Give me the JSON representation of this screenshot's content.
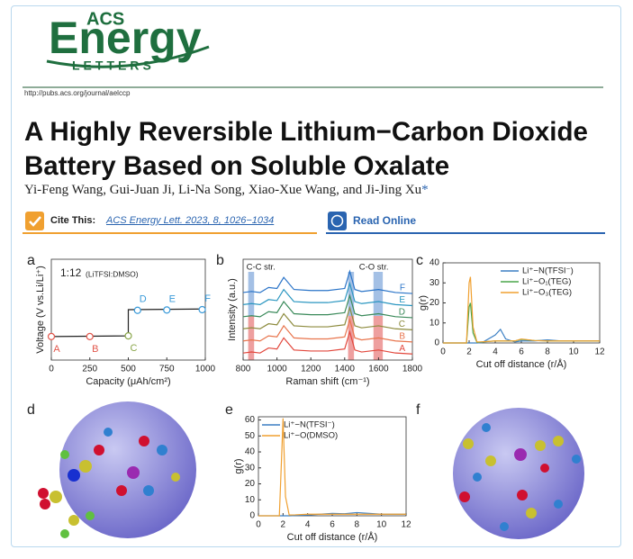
{
  "header": {
    "logo_top": "ACS",
    "logo_main": "Energy",
    "logo_bottom": "LETTERS",
    "url": "http://pubs.acs.org/journal/aelccp"
  },
  "title": "A Highly Reversible Lithium−Carbon Dioxide Battery Based on Soluble Oxalate",
  "authors": "Yi-Feng Wang, Gui-Juan Ji, Li-Na Song, Xiao-Xue Wang, and Ji-Jing Xu",
  "corresponding_mark": "*",
  "cite": {
    "label": "Cite This:",
    "citation": "ACS Energy Lett. 2023, 8, 1026−1034"
  },
  "read_online": "Read Online",
  "figure": {
    "panels": {
      "d": "d",
      "f": "f"
    }
  },
  "chart_data": [
    {
      "type": "line",
      "panel": "a",
      "annotation": "1:12",
      "annotation_note": "(LiTFSI:DMSO)",
      "xlabel": "Capacity (μAh/cm²)",
      "ylabel": "Voltage (V vs.Li/Li⁺)",
      "xlim": [
        0,
        1000
      ],
      "xticks": [
        0,
        250,
        500,
        750,
        1000
      ],
      "ylim": [
        2,
        5
      ],
      "x": [
        0,
        500,
        500,
        1000
      ],
      "series": [
        {
          "color": "#222222",
          "values": [
            2.7,
            2.72,
            3.5,
            3.52
          ]
        }
      ],
      "points": {
        "labels": [
          "A",
          "B",
          "C",
          "D",
          "E",
          "F"
        ],
        "x": [
          0,
          250,
          500,
          560,
          750,
          980
        ],
        "values": [
          2.7,
          2.7,
          2.72,
          3.48,
          3.49,
          3.5
        ],
        "colors": [
          "#e2574c",
          "#e2574c",
          "#8aa64a",
          "#3a9ad9",
          "#3a9ad9",
          "#3a9ad9"
        ]
      }
    },
    {
      "type": "spectra",
      "panel": "b",
      "xlabel": "Raman shift (cm⁻¹)",
      "ylabel": "Intensity (a.u.)",
      "annotations": [
        "C-C str.",
        "C-O str."
      ],
      "xlim": [
        800,
        1800
      ],
      "xticks": [
        800,
        1000,
        1200,
        1400,
        1600,
        1800
      ],
      "ylim": [
        0,
        10
      ],
      "bands": [
        [
          830,
          865
        ],
        [
          1420,
          1455
        ],
        [
          1570,
          1625
        ]
      ],
      "x": [
        800,
        850,
        900,
        950,
        1000,
        1040,
        1100,
        1200,
        1300,
        1400,
        1430,
        1460,
        1500,
        1600,
        1700,
        1800
      ],
      "series": [
        {
          "name": "A",
          "color": "#e2473c",
          "values": [
            0.7,
            0.8,
            0.7,
            1.2,
            1.1,
            2.2,
            1.0,
            0.9,
            0.9,
            1.1,
            2.8,
            1.0,
            0.8,
            1.0,
            0.7,
            0.6
          ]
        },
        {
          "name": "B",
          "color": "#e8744c",
          "values": [
            1.9,
            2.0,
            1.9,
            2.4,
            2.3,
            3.4,
            2.2,
            2.1,
            2.1,
            2.3,
            4.0,
            2.2,
            2.0,
            2.2,
            1.9,
            1.8
          ]
        },
        {
          "name": "C",
          "color": "#8c8a3c",
          "values": [
            3.1,
            3.2,
            3.1,
            3.6,
            3.5,
            4.6,
            3.4,
            3.3,
            3.3,
            3.5,
            5.2,
            3.4,
            3.2,
            3.4,
            3.1,
            3.0
          ]
        },
        {
          "name": "D",
          "color": "#3a8a5a",
          "values": [
            4.3,
            4.4,
            4.3,
            4.8,
            4.7,
            5.8,
            4.6,
            4.5,
            4.5,
            4.7,
            6.4,
            4.6,
            4.4,
            4.6,
            4.3,
            4.2
          ]
        },
        {
          "name": "E",
          "color": "#2a96c0",
          "values": [
            5.5,
            5.6,
            5.5,
            6.0,
            5.9,
            7.0,
            5.8,
            5.7,
            5.7,
            5.9,
            7.6,
            5.8,
            5.6,
            5.8,
            5.5,
            5.4
          ]
        },
        {
          "name": "F",
          "color": "#2a74c8",
          "values": [
            6.7,
            6.8,
            6.7,
            7.2,
            7.1,
            8.2,
            7.0,
            6.9,
            6.9,
            7.1,
            8.8,
            7.0,
            6.8,
            7.0,
            6.7,
            6.6
          ]
        }
      ]
    },
    {
      "type": "line",
      "panel": "c",
      "xlabel": "Cut off distance (r/Å)",
      "ylabel": "g(r)",
      "xlim": [
        0,
        12
      ],
      "xticks": [
        0,
        2,
        4,
        6,
        8,
        10,
        12
      ],
      "ylim": [
        0,
        40
      ],
      "yticks": [
        0,
        10,
        20,
        30,
        40
      ],
      "x": [
        0,
        1.8,
        2.0,
        2.1,
        2.3,
        2.6,
        3,
        4,
        4.4,
        4.8,
        5.5,
        6,
        7,
        8,
        9,
        10,
        12
      ],
      "series": [
        {
          "name": "Li⁺−N(TFSI⁻)",
          "color": "#3b7fc4",
          "values": [
            0,
            0,
            0,
            0,
            0,
            0,
            0.2,
            4,
            6.8,
            2,
            0.5,
            1,
            1,
            1.5,
            1,
            1,
            1
          ]
        },
        {
          "name": "Li⁺−O₁(TEG)",
          "color": "#4aa64a",
          "values": [
            0,
            0,
            18,
            20,
            5,
            0.3,
            0.5,
            1,
            1,
            1,
            1,
            1.8,
            1.2,
            1,
            1,
            1,
            1
          ]
        },
        {
          "name": "Li⁺−O₃(TEG)",
          "color": "#f0a030",
          "values": [
            0,
            0,
            30,
            33,
            8,
            0.5,
            0.6,
            1,
            1,
            1,
            1,
            2,
            1.2,
            1,
            1,
            1,
            1
          ]
        }
      ]
    },
    {
      "type": "line",
      "panel": "e",
      "xlabel": "Cut off distance (r/Å)",
      "ylabel": "g(r)",
      "xlim": [
        0,
        12
      ],
      "xticks": [
        0,
        2,
        4,
        6,
        8,
        10,
        12
      ],
      "ylim": [
        0,
        62
      ],
      "yticks": [
        0,
        10,
        20,
        30,
        40,
        50,
        60
      ],
      "x": [
        0,
        1.7,
        1.9,
        2.0,
        2.2,
        2.5,
        3,
        4,
        5,
        6,
        7,
        8,
        9,
        10,
        12
      ],
      "series": [
        {
          "name": "Li⁺−N(TFSI⁻)",
          "color": "#3b7fc4",
          "values": [
            0,
            0,
            0,
            0,
            0,
            0,
            0.1,
            0.5,
            1,
            1.5,
            1.3,
            2,
            1.5,
            1,
            1
          ]
        },
        {
          "name": "Li⁺−O(DMSO)",
          "color": "#f0a030",
          "values": [
            0,
            0,
            40,
            61,
            12,
            0.5,
            0.6,
            1,
            1,
            1,
            1,
            1,
            1,
            1,
            1
          ]
        }
      ]
    }
  ]
}
